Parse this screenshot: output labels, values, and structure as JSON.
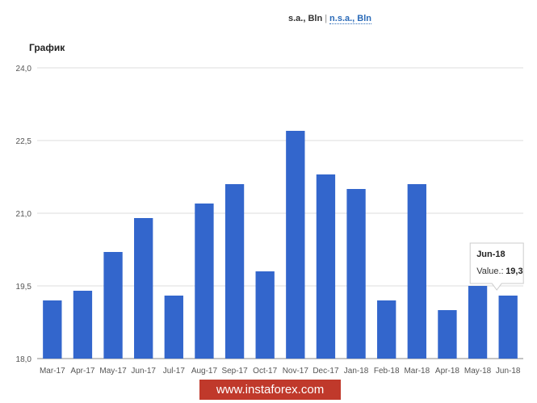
{
  "header": {
    "active_option": "s.a., Bln",
    "separator": "|",
    "link_option": "n.s.a., Bln"
  },
  "chart_data": {
    "type": "bar",
    "title": "График",
    "xlabel": "",
    "ylabel": "",
    "categories": [
      "Mar-17",
      "Apr-17",
      "May-17",
      "Jun-17",
      "Jul-17",
      "Aug-17",
      "Sep-17",
      "Oct-17",
      "Nov-17",
      "Dec-17",
      "Jan-18",
      "Feb-18",
      "Mar-18",
      "Apr-18",
      "May-18",
      "Jun-18"
    ],
    "values": [
      19.2,
      19.4,
      20.2,
      20.9,
      19.3,
      21.2,
      21.6,
      19.8,
      22.7,
      21.8,
      21.5,
      19.2,
      21.6,
      19.0,
      19.5,
      19.3
    ],
    "ylim": [
      18.0,
      24.0
    ],
    "yticks": [
      "18,0",
      "19,5",
      "21,0",
      "22,5",
      "24,0"
    ],
    "grid": true,
    "bar_color": "#3366cc"
  },
  "tooltip": {
    "title": "Jun-18",
    "label": "Value.:",
    "value": "19,3"
  },
  "watermark": "www.instaforex.com"
}
